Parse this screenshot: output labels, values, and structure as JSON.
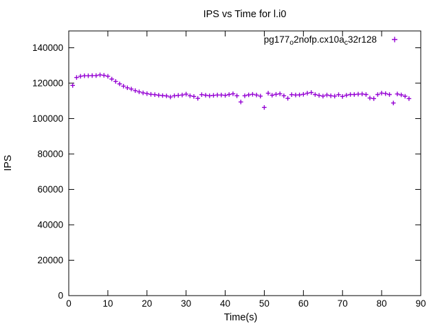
{
  "window": {
    "background": "#ffffff"
  },
  "colors": {
    "marker": "#9400D3",
    "axis": "#000000",
    "text": "#000000",
    "background": "#ffffff"
  },
  "chart_data": {
    "type": "scatter",
    "title": "IPS vs Time for l.i0",
    "xlabel": "Time(s)",
    "ylabel": "IPS",
    "xlim": [
      0,
      90
    ],
    "ylim": [
      0,
      149500
    ],
    "xticks": [
      0,
      10,
      20,
      30,
      40,
      50,
      60,
      70,
      80,
      90
    ],
    "yticks": [
      0,
      20000,
      40000,
      60000,
      80000,
      100000,
      120000,
      140000
    ],
    "grid": false,
    "tick_style": "inward-mirrored",
    "legend_position": "top-right-inside",
    "series": [
      {
        "name": "pg177_o2nofp.cx10a_c32r128",
        "label_segments": [
          {
            "t": "pg177",
            "sub": false
          },
          {
            "t": "o",
            "sub": true
          },
          {
            "t": "2nofp.cx10a",
            "sub": false
          },
          {
            "t": "c",
            "sub": true
          },
          {
            "t": "32r128",
            "sub": false
          }
        ],
        "marker": "plus",
        "color": "#9400D3",
        "x": [
          1,
          2,
          3,
          4,
          5,
          6,
          7,
          8,
          9,
          10,
          11,
          12,
          13,
          14,
          15,
          16,
          17,
          18,
          19,
          20,
          21,
          22,
          23,
          24,
          25,
          26,
          27,
          28,
          29,
          30,
          31,
          32,
          33,
          34,
          35,
          36,
          37,
          38,
          39,
          40,
          41,
          42,
          43,
          44,
          45,
          46,
          47,
          48,
          49,
          50,
          51,
          52,
          53,
          54,
          55,
          56,
          57,
          58,
          59,
          60,
          61,
          62,
          63,
          64,
          65,
          66,
          67,
          68,
          69,
          70,
          71,
          72,
          73,
          74,
          75,
          76,
          77,
          78,
          79,
          80,
          81,
          82,
          83,
          84,
          85,
          86,
          87
        ],
        "y": [
          118700,
          123200,
          123900,
          124200,
          124200,
          124300,
          124300,
          124700,
          124400,
          123900,
          122300,
          121000,
          119600,
          118300,
          117400,
          116700,
          115800,
          115100,
          114500,
          114100,
          113700,
          113500,
          113200,
          113000,
          112800,
          112200,
          112900,
          113100,
          113300,
          113800,
          112900,
          112500,
          111400,
          113500,
          113200,
          112900,
          113100,
          113300,
          113300,
          113100,
          113600,
          114000,
          112900,
          109400,
          112900,
          113400,
          113700,
          113300,
          112700,
          106300,
          114300,
          113200,
          113700,
          114000,
          112900,
          111400,
          113500,
          113300,
          113400,
          113700,
          114300,
          114700,
          113600,
          113100,
          112700,
          113300,
          112900,
          112700,
          113500,
          112500,
          113200,
          113600,
          113600,
          113800,
          113900,
          113600,
          111600,
          111300,
          113600,
          114400,
          114100,
          113600,
          108800,
          113900,
          113400,
          112600,
          111300
        ]
      }
    ]
  }
}
